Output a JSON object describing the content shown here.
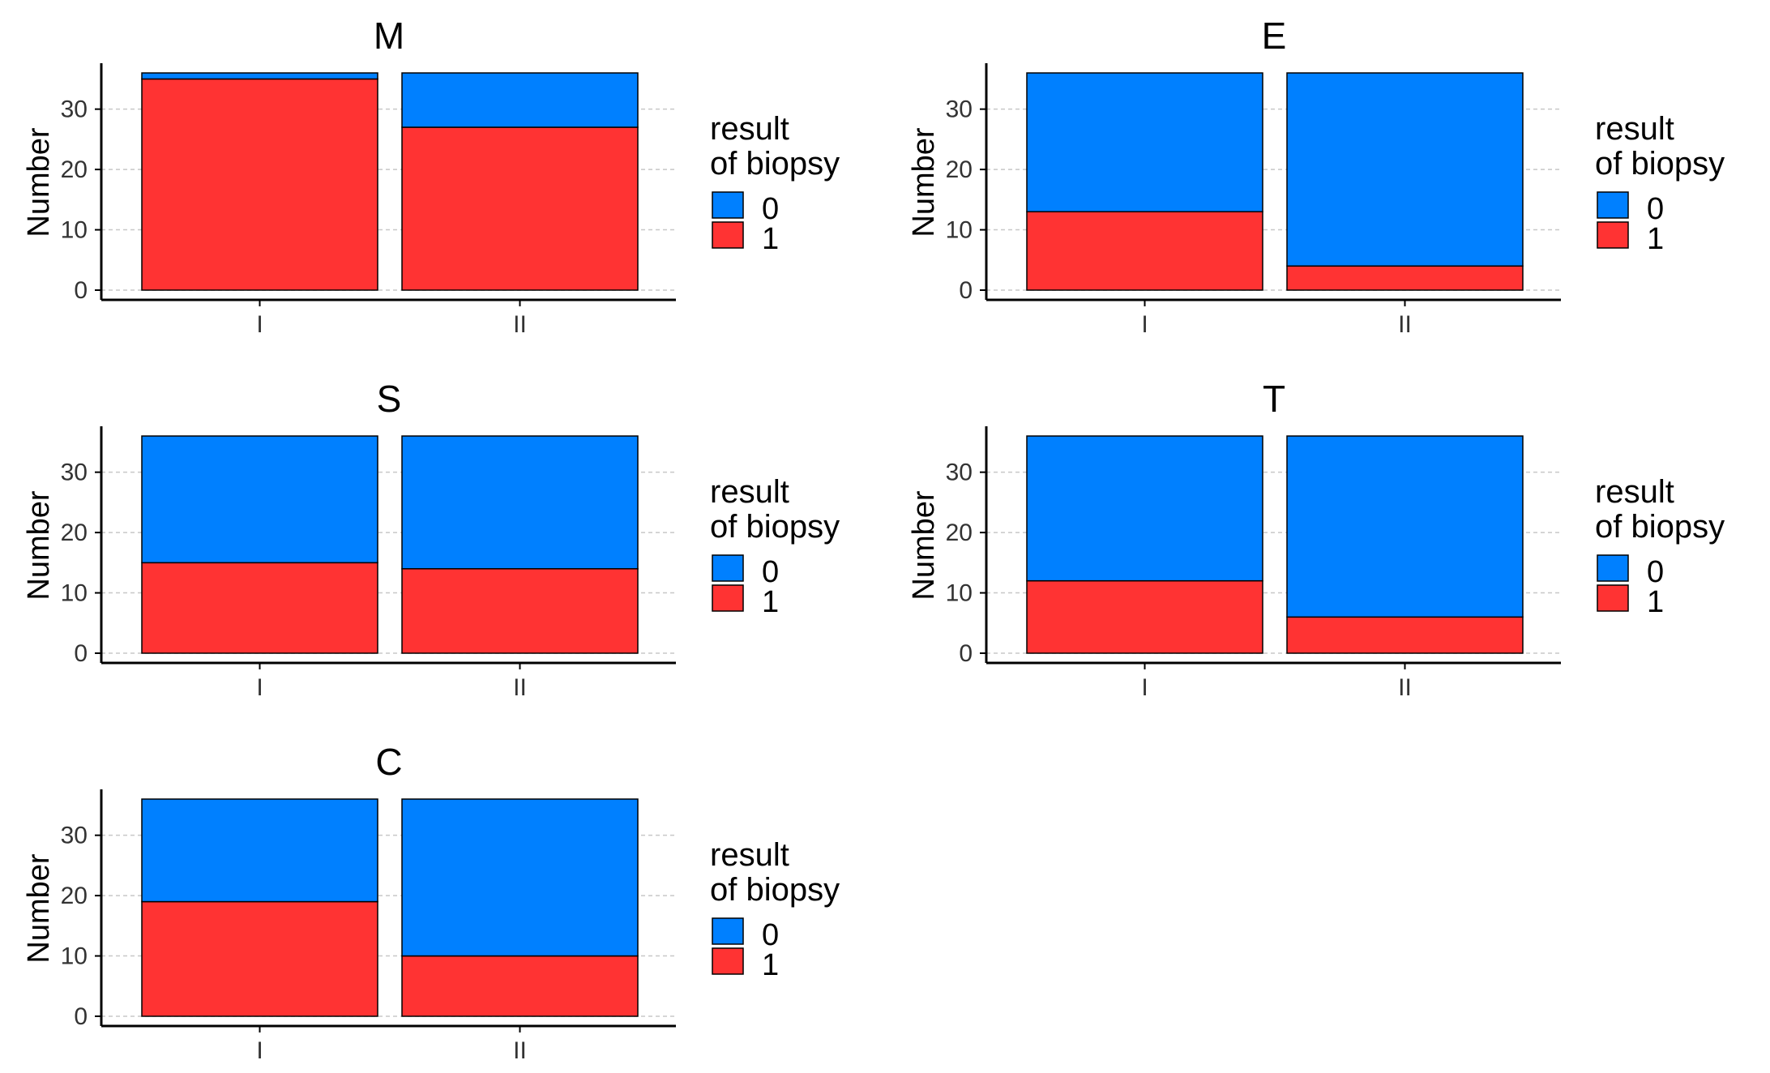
{
  "chart_data": [
    {
      "type": "bar",
      "stacked": true,
      "title": "M",
      "categories": [
        "I",
        "II"
      ],
      "series": [
        {
          "name": "0",
          "values": [
            1,
            9
          ]
        },
        {
          "name": "1",
          "values": [
            35,
            27
          ]
        }
      ],
      "xlabel": "",
      "ylabel": "Number",
      "ylim": [
        0,
        36
      ],
      "yticks": [
        0,
        10,
        20,
        30
      ],
      "grid": "horizontal-dashed",
      "legend": {
        "title_line1": "result",
        "title_line2": "of biopsy",
        "labels": [
          "0",
          "1"
        ],
        "placement": "right"
      }
    },
    {
      "type": "bar",
      "stacked": true,
      "title": "E",
      "categories": [
        "I",
        "II"
      ],
      "series": [
        {
          "name": "0",
          "values": [
            23,
            32
          ]
        },
        {
          "name": "1",
          "values": [
            13,
            4
          ]
        }
      ],
      "xlabel": "",
      "ylabel": "Number",
      "ylim": [
        0,
        36
      ],
      "yticks": [
        0,
        10,
        20,
        30
      ],
      "grid": "horizontal-dashed",
      "legend": {
        "title_line1": "result",
        "title_line2": "of biopsy",
        "labels": [
          "0",
          "1"
        ],
        "placement": "right"
      }
    },
    {
      "type": "bar",
      "stacked": true,
      "title": "S",
      "categories": [
        "I",
        "II"
      ],
      "series": [
        {
          "name": "0",
          "values": [
            21,
            22
          ]
        },
        {
          "name": "1",
          "values": [
            15,
            14
          ]
        }
      ],
      "xlabel": "",
      "ylabel": "Number",
      "ylim": [
        0,
        36
      ],
      "yticks": [
        0,
        10,
        20,
        30
      ],
      "grid": "horizontal-dashed",
      "legend": {
        "title_line1": "result",
        "title_line2": "of biopsy",
        "labels": [
          "0",
          "1"
        ],
        "placement": "right"
      }
    },
    {
      "type": "bar",
      "stacked": true,
      "title": "T",
      "categories": [
        "I",
        "II"
      ],
      "series": [
        {
          "name": "0",
          "values": [
            24,
            30
          ]
        },
        {
          "name": "1",
          "values": [
            12,
            6
          ]
        }
      ],
      "xlabel": "",
      "ylabel": "Number",
      "ylim": [
        0,
        36
      ],
      "yticks": [
        0,
        10,
        20,
        30
      ],
      "grid": "horizontal-dashed",
      "legend": {
        "title_line1": "result",
        "title_line2": "of biopsy",
        "labels": [
          "0",
          "1"
        ],
        "placement": "right"
      }
    },
    {
      "type": "bar",
      "stacked": true,
      "title": "C",
      "categories": [
        "I",
        "II"
      ],
      "series": [
        {
          "name": "0",
          "values": [
            17,
            26
          ]
        },
        {
          "name": "1",
          "values": [
            19,
            10
          ]
        }
      ],
      "xlabel": "",
      "ylabel": "Number",
      "ylim": [
        0,
        36
      ],
      "yticks": [
        0,
        10,
        20,
        30
      ],
      "grid": "horizontal-dashed",
      "legend": {
        "title_line1": "result",
        "title_line2": "of biopsy",
        "labels": [
          "0",
          "1"
        ],
        "placement": "right"
      }
    }
  ],
  "colors": {
    "0": "#0080FF",
    "1": "#FF3333"
  }
}
